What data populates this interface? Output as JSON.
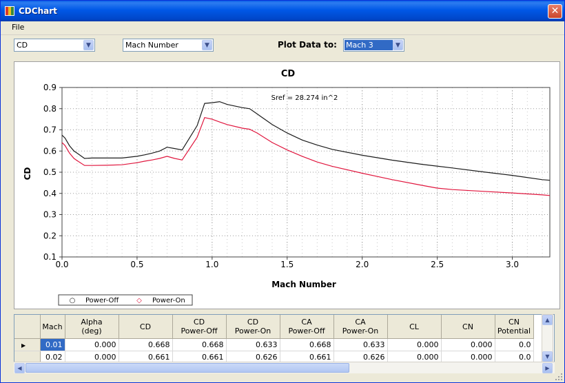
{
  "window": {
    "title": "CDChart",
    "close_icon": "close-icon"
  },
  "menu": {
    "file": "File"
  },
  "toolbar": {
    "combo1": "CD",
    "combo2": "Mach Number",
    "plot_label": "Plot Data to:",
    "combo3": "Mach 3"
  },
  "chart_data": {
    "type": "line",
    "title": "CD",
    "annotation": "Sref = 28.274 in^2",
    "xlabel": "Mach Number",
    "ylabel": "CD",
    "xlim": [
      0,
      3.25
    ],
    "ylim": [
      0.1,
      0.9
    ],
    "xticks": [
      "0.0",
      "0.5",
      "1.0",
      "1.5",
      "2.0",
      "2.5",
      "3.0"
    ],
    "yticks": [
      "0.1",
      "0.2",
      "0.3",
      "0.4",
      "0.5",
      "0.6",
      "0.7",
      "0.8",
      "0.9"
    ],
    "grid": true,
    "legend_position": "bottom-left",
    "series": [
      {
        "name": "Power-Off",
        "marker": "○",
        "color": "#1a1a1a",
        "x": [
          0.0,
          0.01,
          0.02,
          0.05,
          0.08,
          0.1,
          0.15,
          0.2,
          0.3,
          0.4,
          0.5,
          0.55,
          0.6,
          0.65,
          0.7,
          0.75,
          0.8,
          0.9,
          0.95,
          1.0,
          1.05,
          1.1,
          1.2,
          1.25,
          1.3,
          1.4,
          1.5,
          1.6,
          1.7,
          1.8,
          2.0,
          2.2,
          2.4,
          2.6,
          2.8,
          3.0,
          3.2,
          3.25
        ],
        "y": [
          0.675,
          0.668,
          0.661,
          0.625,
          0.6,
          0.59,
          0.565,
          0.567,
          0.567,
          0.567,
          0.575,
          0.582,
          0.59,
          0.6,
          0.618,
          0.612,
          0.605,
          0.72,
          0.825,
          0.828,
          0.833,
          0.82,
          0.805,
          0.8,
          0.775,
          0.725,
          0.685,
          0.652,
          0.628,
          0.608,
          0.58,
          0.557,
          0.537,
          0.52,
          0.502,
          0.485,
          0.465,
          0.462
        ]
      },
      {
        "name": "Power-On",
        "marker": "◇",
        "color": "#e0143c",
        "x": [
          0.0,
          0.01,
          0.02,
          0.05,
          0.08,
          0.1,
          0.15,
          0.2,
          0.3,
          0.4,
          0.5,
          0.55,
          0.6,
          0.65,
          0.7,
          0.75,
          0.8,
          0.9,
          0.95,
          1.0,
          1.05,
          1.1,
          1.2,
          1.25,
          1.3,
          1.4,
          1.5,
          1.6,
          1.7,
          1.8,
          2.0,
          2.2,
          2.4,
          2.5,
          2.6,
          2.8,
          3.0,
          3.2,
          3.25
        ],
        "y": [
          0.64,
          0.633,
          0.626,
          0.59,
          0.565,
          0.555,
          0.532,
          0.532,
          0.533,
          0.535,
          0.545,
          0.552,
          0.558,
          0.565,
          0.575,
          0.565,
          0.558,
          0.665,
          0.758,
          0.75,
          0.737,
          0.725,
          0.708,
          0.703,
          0.685,
          0.64,
          0.605,
          0.575,
          0.548,
          0.528,
          0.495,
          0.465,
          0.438,
          0.425,
          0.418,
          0.41,
          0.402,
          0.393,
          0.39
        ]
      }
    ]
  },
  "grid": {
    "columns": [
      [
        "Mach"
      ],
      [
        "Alpha",
        "(deg)"
      ],
      [
        "CD"
      ],
      [
        "CD",
        "Power-Off"
      ],
      [
        "CD",
        "Power-On"
      ],
      [
        "CA",
        "Power-Off"
      ],
      [
        "CA",
        "Power-On"
      ],
      [
        "CL"
      ],
      [
        "CN"
      ],
      [
        "CN",
        "Potential"
      ]
    ],
    "rows": [
      [
        "0.01",
        "0.000",
        "0.668",
        "0.668",
        "0.633",
        "0.668",
        "0.633",
        "0.000",
        "0.000",
        "0.0"
      ],
      [
        "0.02",
        "0.000",
        "0.661",
        "0.661",
        "0.626",
        "0.661",
        "0.626",
        "0.000",
        "0.000",
        "0.0"
      ]
    ]
  }
}
